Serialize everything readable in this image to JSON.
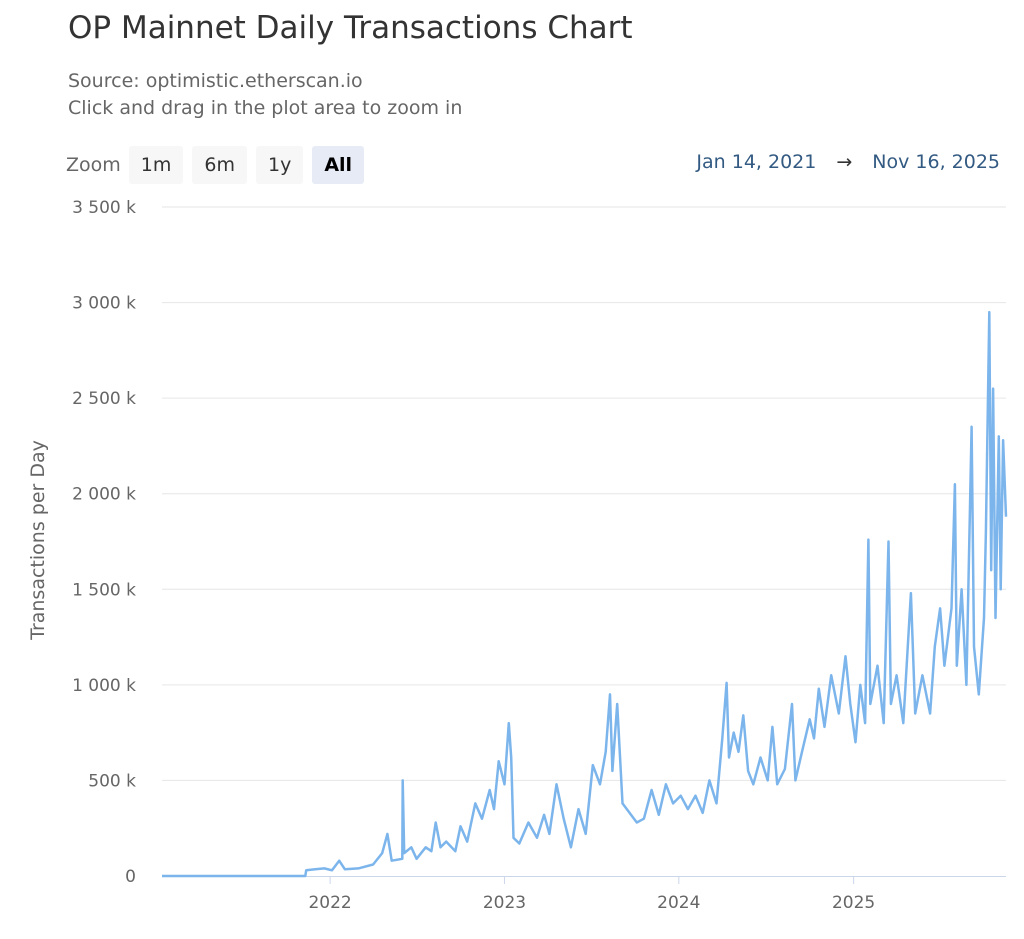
{
  "title": "OP Mainnet Daily Transactions Chart",
  "subtitle": {
    "line1": "Source: optimistic.etherscan.io",
    "line2": "Click and drag in the plot area to zoom in"
  },
  "zoom": {
    "label": "Zoom",
    "buttons": [
      "1m",
      "6m",
      "1y",
      "All"
    ],
    "active": "All"
  },
  "range": {
    "from": "Jan 14, 2021",
    "arrow": "→",
    "to": "Nov 16, 2025"
  },
  "colors": {
    "series": "#7cb5ec",
    "grid": "#e6e6e6",
    "axis": "#ccd6eb",
    "active_button": "#e6ebf5"
  },
  "chart_data": {
    "type": "line",
    "title": "OP Mainnet Daily Transactions Chart",
    "ylabel": "Transactions per Day",
    "xlabel": "",
    "ylim": [
      0,
      3500000
    ],
    "y_ticks": [
      0,
      500000,
      1000000,
      1500000,
      2000000,
      2500000,
      3000000,
      3500000
    ],
    "y_tick_labels": [
      "0",
      "500 k",
      "1 000 k",
      "1 500 k",
      "2 000 k",
      "2 500 k",
      "3 000 k",
      "3 500 k"
    ],
    "x_tick_labels": [
      "2022",
      "2023",
      "2024",
      "2025"
    ],
    "xlim": [
      "2021-01-14",
      "2025-11-16"
    ],
    "grid": true,
    "legend": false,
    "series": [
      {
        "values": [
          [
            "2021-01-14",
            0
          ],
          [
            "2021-06-01",
            0
          ],
          [
            "2021-11-10",
            0
          ],
          [
            "2021-11-12",
            30000
          ],
          [
            "2021-12-01",
            35000
          ],
          [
            "2021-12-20",
            40000
          ],
          [
            "2022-01-05",
            30000
          ],
          [
            "2022-01-20",
            80000
          ],
          [
            "2022-02-01",
            35000
          ],
          [
            "2022-03-01",
            40000
          ],
          [
            "2022-04-01",
            60000
          ],
          [
            "2022-04-20",
            120000
          ],
          [
            "2022-05-01",
            220000
          ],
          [
            "2022-05-10",
            80000
          ],
          [
            "2022-06-01",
            90000
          ],
          [
            "2022-06-02",
            500000
          ],
          [
            "2022-06-05",
            120000
          ],
          [
            "2022-06-20",
            150000
          ],
          [
            "2022-07-01",
            90000
          ],
          [
            "2022-07-20",
            150000
          ],
          [
            "2022-08-01",
            130000
          ],
          [
            "2022-08-10",
            280000
          ],
          [
            "2022-08-20",
            150000
          ],
          [
            "2022-09-01",
            180000
          ],
          [
            "2022-09-20",
            130000
          ],
          [
            "2022-10-01",
            260000
          ],
          [
            "2022-10-15",
            180000
          ],
          [
            "2022-11-01",
            380000
          ],
          [
            "2022-11-15",
            300000
          ],
          [
            "2022-12-01",
            450000
          ],
          [
            "2022-12-10",
            350000
          ],
          [
            "2022-12-20",
            600000
          ],
          [
            "2023-01-01",
            480000
          ],
          [
            "2023-01-10",
            800000
          ],
          [
            "2023-01-15",
            620000
          ],
          [
            "2023-01-20",
            200000
          ],
          [
            "2023-02-01",
            170000
          ],
          [
            "2023-02-20",
            280000
          ],
          [
            "2023-03-10",
            200000
          ],
          [
            "2023-03-25",
            320000
          ],
          [
            "2023-04-05",
            220000
          ],
          [
            "2023-04-20",
            480000
          ],
          [
            "2023-05-05",
            300000
          ],
          [
            "2023-05-20",
            150000
          ],
          [
            "2023-06-05",
            350000
          ],
          [
            "2023-06-20",
            220000
          ],
          [
            "2023-07-05",
            580000
          ],
          [
            "2023-07-20",
            480000
          ],
          [
            "2023-08-01",
            650000
          ],
          [
            "2023-08-10",
            950000
          ],
          [
            "2023-08-15",
            550000
          ],
          [
            "2023-08-25",
            900000
          ],
          [
            "2023-09-05",
            380000
          ],
          [
            "2023-09-20",
            330000
          ],
          [
            "2023-10-05",
            280000
          ],
          [
            "2023-10-20",
            300000
          ],
          [
            "2023-11-05",
            450000
          ],
          [
            "2023-11-20",
            320000
          ],
          [
            "2023-12-05",
            480000
          ],
          [
            "2023-12-20",
            380000
          ],
          [
            "2024-01-05",
            420000
          ],
          [
            "2024-01-20",
            350000
          ],
          [
            "2024-02-05",
            420000
          ],
          [
            "2024-02-20",
            330000
          ],
          [
            "2024-03-05",
            500000
          ],
          [
            "2024-03-20",
            380000
          ],
          [
            "2024-04-01",
            720000
          ],
          [
            "2024-04-10",
            1010000
          ],
          [
            "2024-04-15",
            620000
          ],
          [
            "2024-04-25",
            750000
          ],
          [
            "2024-05-05",
            650000
          ],
          [
            "2024-05-15",
            840000
          ],
          [
            "2024-05-25",
            550000
          ],
          [
            "2024-06-05",
            480000
          ],
          [
            "2024-06-20",
            620000
          ],
          [
            "2024-07-05",
            500000
          ],
          [
            "2024-07-15",
            780000
          ],
          [
            "2024-07-25",
            480000
          ],
          [
            "2024-08-10",
            560000
          ],
          [
            "2024-08-25",
            900000
          ],
          [
            "2024-09-01",
            500000
          ],
          [
            "2024-09-15",
            650000
          ],
          [
            "2024-10-01",
            820000
          ],
          [
            "2024-10-10",
            720000
          ],
          [
            "2024-10-20",
            980000
          ],
          [
            "2024-11-01",
            780000
          ],
          [
            "2024-11-15",
            1050000
          ],
          [
            "2024-12-01",
            850000
          ],
          [
            "2024-12-15",
            1150000
          ],
          [
            "2024-12-25",
            900000
          ],
          [
            "2025-01-05",
            700000
          ],
          [
            "2025-01-15",
            1000000
          ],
          [
            "2025-01-25",
            800000
          ],
          [
            "2025-02-01",
            1760000
          ],
          [
            "2025-02-05",
            900000
          ],
          [
            "2025-02-20",
            1100000
          ],
          [
            "2025-03-05",
            800000
          ],
          [
            "2025-03-15",
            1750000
          ],
          [
            "2025-03-20",
            900000
          ],
          [
            "2025-04-01",
            1050000
          ],
          [
            "2025-04-15",
            800000
          ],
          [
            "2025-05-01",
            1480000
          ],
          [
            "2025-05-10",
            850000
          ],
          [
            "2025-05-25",
            1050000
          ],
          [
            "2025-06-10",
            850000
          ],
          [
            "2025-06-20",
            1200000
          ],
          [
            "2025-07-01",
            1400000
          ],
          [
            "2025-07-10",
            1100000
          ],
          [
            "2025-07-25",
            1400000
          ],
          [
            "2025-08-01",
            2050000
          ],
          [
            "2025-08-05",
            1100000
          ],
          [
            "2025-08-15",
            1500000
          ],
          [
            "2025-08-25",
            1000000
          ],
          [
            "2025-09-05",
            2350000
          ],
          [
            "2025-09-10",
            1200000
          ],
          [
            "2025-09-20",
            950000
          ],
          [
            "2025-10-01",
            1350000
          ],
          [
            "2025-10-05",
            1800000
          ],
          [
            "2025-10-12",
            2950000
          ],
          [
            "2025-10-16",
            1600000
          ],
          [
            "2025-10-20",
            2550000
          ],
          [
            "2025-10-25",
            1350000
          ],
          [
            "2025-11-01",
            2300000
          ],
          [
            "2025-11-05",
            1500000
          ],
          [
            "2025-11-10",
            2280000
          ],
          [
            "2025-11-16",
            1880000
          ]
        ]
      }
    ]
  }
}
